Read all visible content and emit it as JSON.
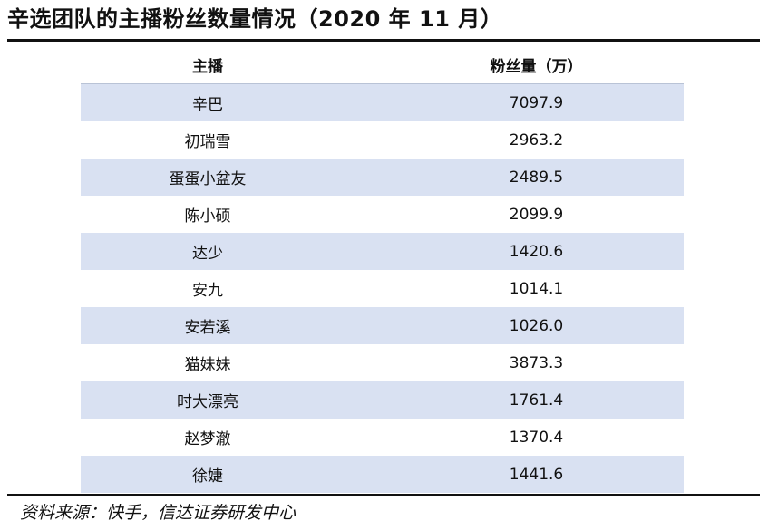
{
  "title": "辛选团队的主播粉丝数量情况（2020 年 11 月）",
  "table": {
    "headers": {
      "name": "主播",
      "fans": "粉丝量（万）"
    },
    "rows": [
      {
        "name": "辛巴",
        "fans": "7097.9"
      },
      {
        "name": "初瑞雪",
        "fans": "2963.2"
      },
      {
        "name": "蛋蛋小盆友",
        "fans": "2489.5"
      },
      {
        "name": "陈小硕",
        "fans": "2099.9"
      },
      {
        "name": "达少",
        "fans": "1420.6"
      },
      {
        "name": "安九",
        "fans": "1014.1"
      },
      {
        "name": "安若溪",
        "fans": "1026.0"
      },
      {
        "name": "猫妹妹",
        "fans": "3873.3"
      },
      {
        "name": "时大漂亮",
        "fans": "1761.4"
      },
      {
        "name": "赵梦澈",
        "fans": "1370.4"
      },
      {
        "name": "徐婕",
        "fans": "1441.6"
      }
    ]
  },
  "source": "资料来源：快手，信达证券研发中心",
  "colors": {
    "row_shade": "#d9e1f2",
    "rule": "#111111"
  }
}
